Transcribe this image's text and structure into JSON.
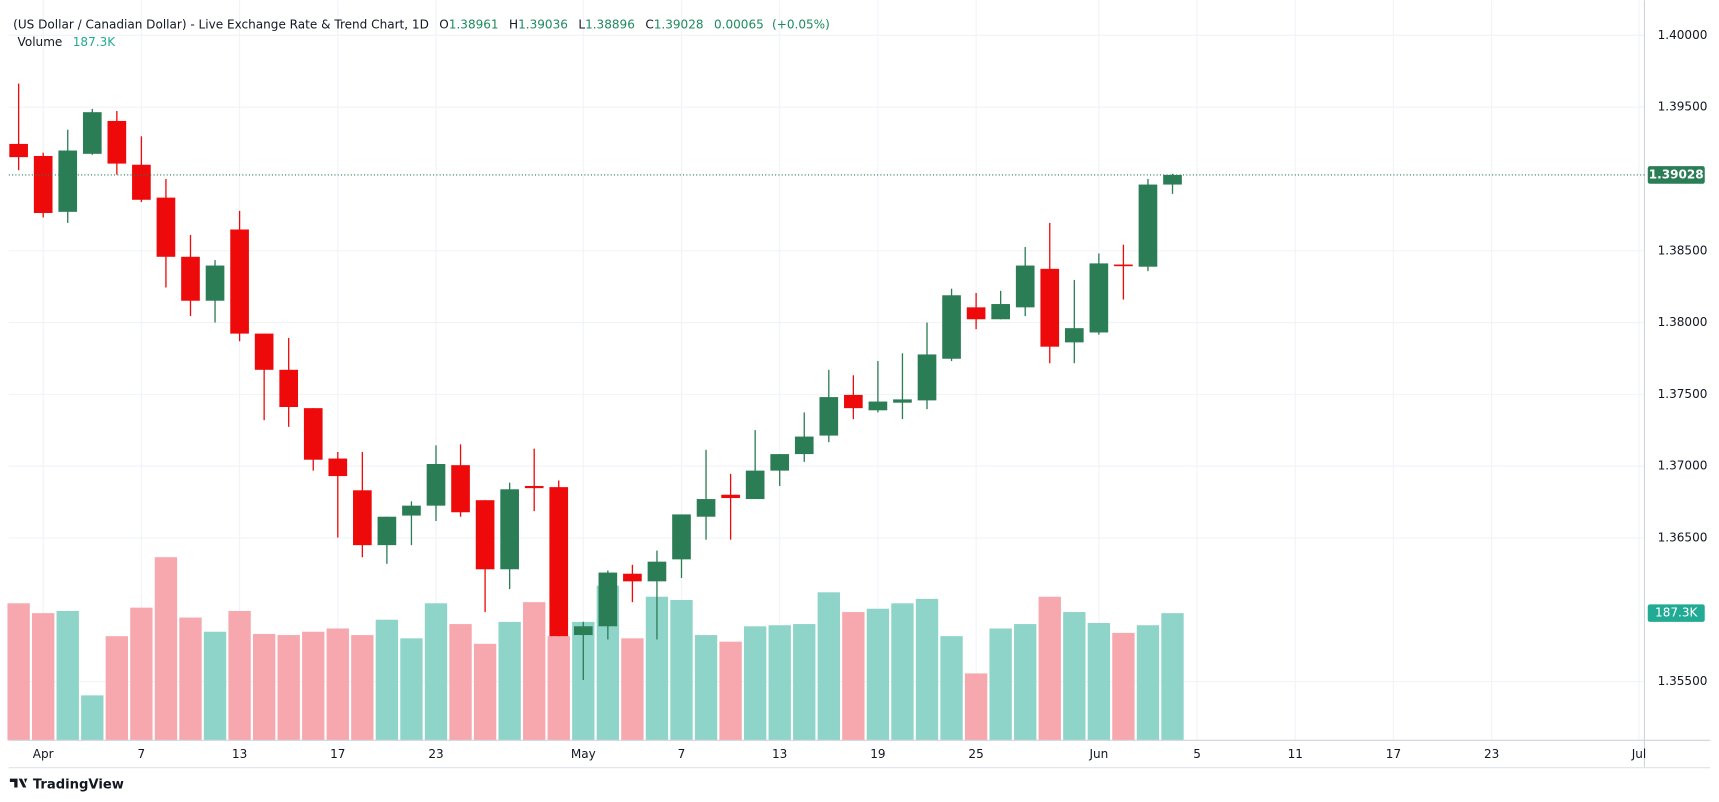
{
  "chart_data": {
    "type": "candlestick",
    "title": "(US Dollar / Canadian Dollar) - Live Exchange Rate & Trend Chart, 1D",
    "ohlc_labels": [
      "O",
      "H",
      "L",
      "C"
    ],
    "change": 0.00065,
    "change_pct_label": "(+0.05%)",
    "brand": "TradingView",
    "up_color": "#2b7d55",
    "down_color": "#ee0a0a",
    "categories": [
      null,
      "Apr",
      null,
      null,
      null,
      "7",
      null,
      null,
      null,
      "13",
      null,
      null,
      null,
      "17",
      null,
      null,
      null,
      "23",
      null,
      null,
      null,
      null,
      null,
      "May",
      null,
      null,
      null,
      "7",
      null,
      null,
      null,
      "13",
      null,
      null,
      null,
      "19",
      null,
      null,
      null,
      "25",
      null,
      null,
      null,
      null,
      "Jun",
      null,
      null,
      null,
      "5",
      null,
      null,
      null,
      "11",
      null,
      null,
      null,
      "17",
      null,
      null,
      null,
      "23",
      null,
      null,
      null,
      null,
      null,
      "Jul"
    ],
    "open": [
      1.39244,
      1.3916,
      1.38771,
      1.39175,
      1.39404,
      1.39099,
      1.3887,
      1.38458,
      1.38152,
      1.38648,
      1.37923,
      1.37671,
      1.37404,
      1.37053,
      1.36832,
      1.3645,
      1.36656,
      1.36725,
      1.37007,
      1.36763,
      1.36282,
      1.36862,
      1.36854,
      1.35824,
      1.35885,
      1.36251,
      1.36198,
      1.36351,
      1.36648,
      1.36801,
      1.36771,
      1.36969,
      1.37084,
      1.37213,
      1.37496,
      1.37389,
      1.37442,
      1.37458,
      1.37748,
      1.38106,
      1.38023,
      1.38106,
      1.38374,
      1.37862,
      1.37931,
      1.38404,
      1.38389,
      1.38961,
      null,
      null,
      null,
      null,
      null,
      null,
      null,
      null,
      null,
      null,
      null,
      null,
      null,
      null,
      null,
      null,
      null,
      null,
      null
    ],
    "high": [
      1.39664,
      1.39183,
      1.39343,
      1.39488,
      1.39473,
      1.39297,
      1.39,
      1.3861,
      1.38435,
      1.38778,
      1.37923,
      1.37893,
      1.37404,
      1.37099,
      1.37099,
      1.36648,
      1.36755,
      1.37145,
      1.37152,
      1.36763,
      1.36885,
      1.37122,
      1.369,
      1.35916,
      1.36274,
      1.36313,
      1.36412,
      1.36664,
      1.37114,
      1.36946,
      1.37251,
      1.37084,
      1.37374,
      1.37671,
      1.37633,
      1.37732,
      1.37786,
      1.38,
      1.38236,
      1.38206,
      1.38221,
      1.38526,
      1.38694,
      1.38297,
      1.38481,
      1.38542,
      1.39,
      1.39036,
      null,
      null,
      null,
      null,
      null,
      null,
      null,
      null,
      null,
      null,
      null,
      null,
      null,
      null,
      null,
      null,
      null,
      null,
      null
    ],
    "low": [
      1.39061,
      1.38732,
      1.38694,
      1.39168,
      1.3903,
      1.38839,
      1.38244,
      1.38045,
      1.38,
      1.3787,
      1.3732,
      1.37274,
      1.36969,
      1.36503,
      1.36366,
      1.3632,
      1.3645,
      1.36618,
      1.36648,
      1.35984,
      1.36144,
      1.36687,
      1.35816,
      1.35511,
      1.35793,
      1.36053,
      1.35793,
      1.36221,
      1.36488,
      1.36488,
      1.36771,
      1.36862,
      1.3703,
      1.37167,
      1.37328,
      1.37374,
      1.37328,
      1.37397,
      1.37732,
      1.37954,
      1.38023,
      1.38045,
      1.37717,
      1.37717,
      1.37916,
      1.3816,
      1.38358,
      1.38896,
      null,
      null,
      null,
      null,
      null,
      null,
      null,
      null,
      null,
      null,
      null,
      null,
      null,
      null,
      null,
      null,
      null,
      null,
      null
    ],
    "close": [
      1.39152,
      1.38763,
      1.39198,
      1.39465,
      1.39107,
      1.38855,
      1.38458,
      1.38152,
      1.38397,
      1.37923,
      1.37671,
      1.37412,
      1.37045,
      1.36931,
      1.3645,
      1.36648,
      1.36725,
      1.37015,
      1.36679,
      1.36282,
      1.36839,
      1.36847,
      1.35816,
      1.35885,
      1.36259,
      1.36198,
      1.36335,
      1.36664,
      1.36771,
      1.36778,
      1.36969,
      1.37084,
      1.37206,
      1.37481,
      1.37404,
      1.3745,
      1.37465,
      1.37778,
      1.3819,
      1.38023,
      1.38129,
      1.38397,
      1.37832,
      1.37961,
      1.38412,
      1.38397,
      1.38961,
      1.39028,
      null,
      null,
      null,
      null,
      null,
      null,
      null,
      null,
      null,
      null,
      null,
      null,
      null,
      null,
      null,
      null,
      null,
      null,
      null
    ],
    "volume": {
      "name": "Volume",
      "up_color": "#8fd4c9",
      "down_color": "#f7a8af",
      "values": [
        201.8,
        187.3,
        190.5,
        66.2,
        153.4,
        195.4,
        269.7,
        180.8,
        159.9,
        190.5,
        156.6,
        155.0,
        159.9,
        164.7,
        155.0,
        177.6,
        150.2,
        201.8,
        171.2,
        142.1,
        174.4,
        203.5,
        153.4,
        174.4,
        227.7,
        150.2,
        211.5,
        206.7,
        155.0,
        145.3,
        167.9,
        169.5,
        171.2,
        218.0,
        188.9,
        193.8,
        201.8,
        208.3,
        153.4,
        98.5,
        164.7,
        171.2,
        211.5,
        188.9,
        172.8,
        158.2,
        169.5,
        187.3,
        null,
        null,
        null,
        null,
        null,
        null,
        null,
        null,
        null,
        null,
        null,
        null,
        null,
        null,
        null,
        null,
        null,
        null,
        null
      ],
      "value_labels": [
        null,
        null,
        null,
        null,
        null,
        null,
        null,
        null,
        null,
        null,
        null,
        null,
        null,
        null,
        null,
        null,
        null,
        null,
        null,
        null,
        null,
        null,
        null,
        null,
        null,
        null,
        null,
        null,
        null,
        null,
        null,
        null,
        null,
        null,
        null,
        null,
        null,
        null,
        null,
        null,
        null,
        null,
        null,
        null,
        null,
        null,
        null,
        "187.3K",
        null,
        null,
        null,
        null,
        null,
        null,
        null,
        null,
        null,
        null,
        null,
        null,
        null,
        null,
        null,
        null,
        null,
        null,
        null
      ],
      "ylim": [
        0,
        1077
      ]
    },
    "ylim": [
      1.35091,
      1.40183
    ],
    "yticks": [
      {
        "value": 1.355,
        "label": "1.35500"
      },
      {
        "value": 1.365,
        "label": "1.36500"
      },
      {
        "value": 1.37,
        "label": "1.37000"
      },
      {
        "value": 1.375,
        "label": "1.37500"
      },
      {
        "value": 1.38,
        "label": "1.38000"
      },
      {
        "value": 1.385,
        "label": "1.38500"
      },
      {
        "value": 1.395,
        "label": "1.39500"
      },
      {
        "value": 1.4,
        "label": "1.40000"
      }
    ],
    "grid": true
  }
}
